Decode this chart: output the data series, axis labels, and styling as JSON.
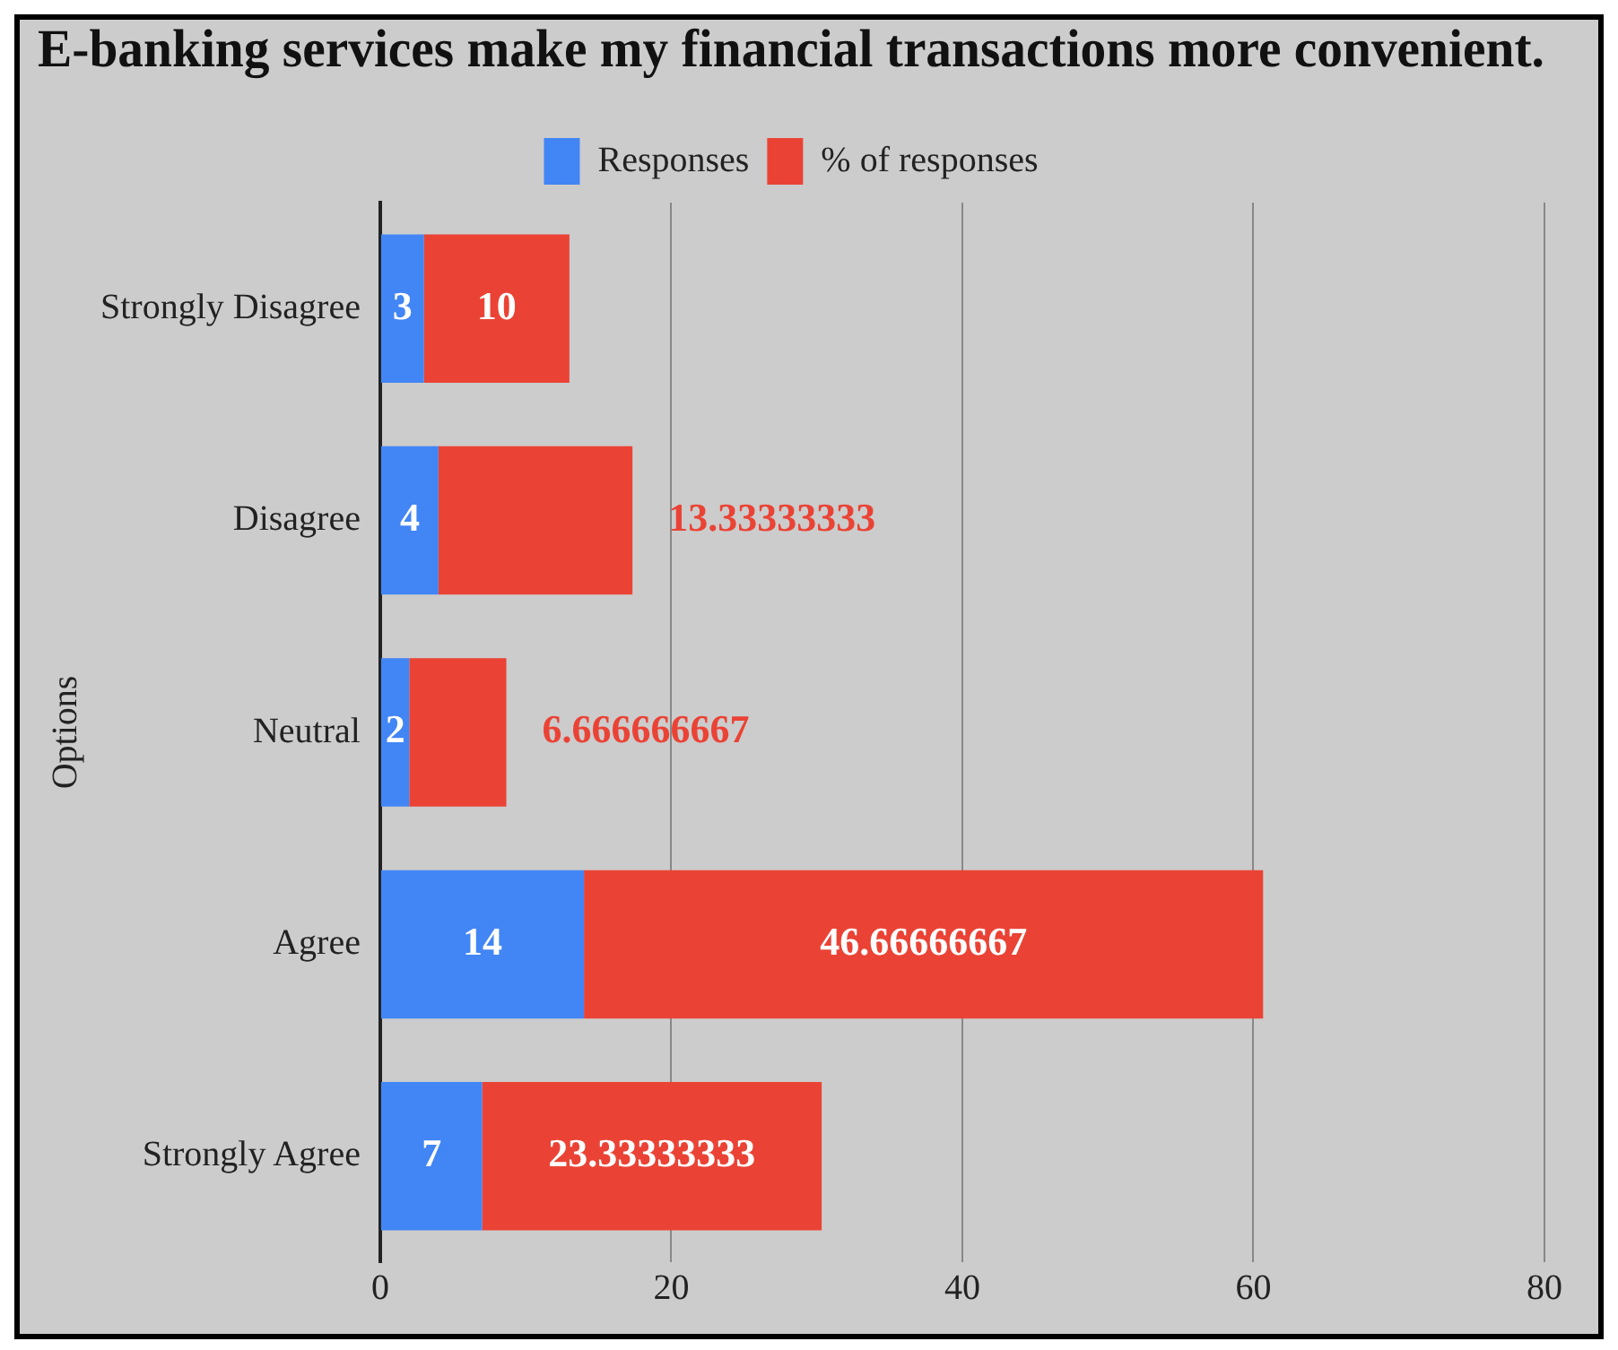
{
  "chart_data": {
    "type": "bar",
    "orientation": "horizontal",
    "stacked": true,
    "title": "E-banking services make my financial transactions more convenient.",
    "ylabel": "Options",
    "categories": [
      "Strongly Disagree",
      "Disagree",
      "Neutral",
      "Agree",
      "Strongly Agree"
    ],
    "series": [
      {
        "name": "Responses",
        "color": "#4285f4",
        "values": [
          3,
          4,
          2,
          14,
          7
        ]
      },
      {
        "name": "% of responses",
        "color": "#ea4335",
        "values": [
          10,
          13.33333333,
          6.666666667,
          46.66666667,
          23.33333333
        ]
      }
    ],
    "xlim": [
      0,
      80
    ],
    "xticks": [
      0,
      20,
      40,
      60,
      80
    ],
    "grid": "x",
    "legend": "top",
    "data_labels": true
  }
}
